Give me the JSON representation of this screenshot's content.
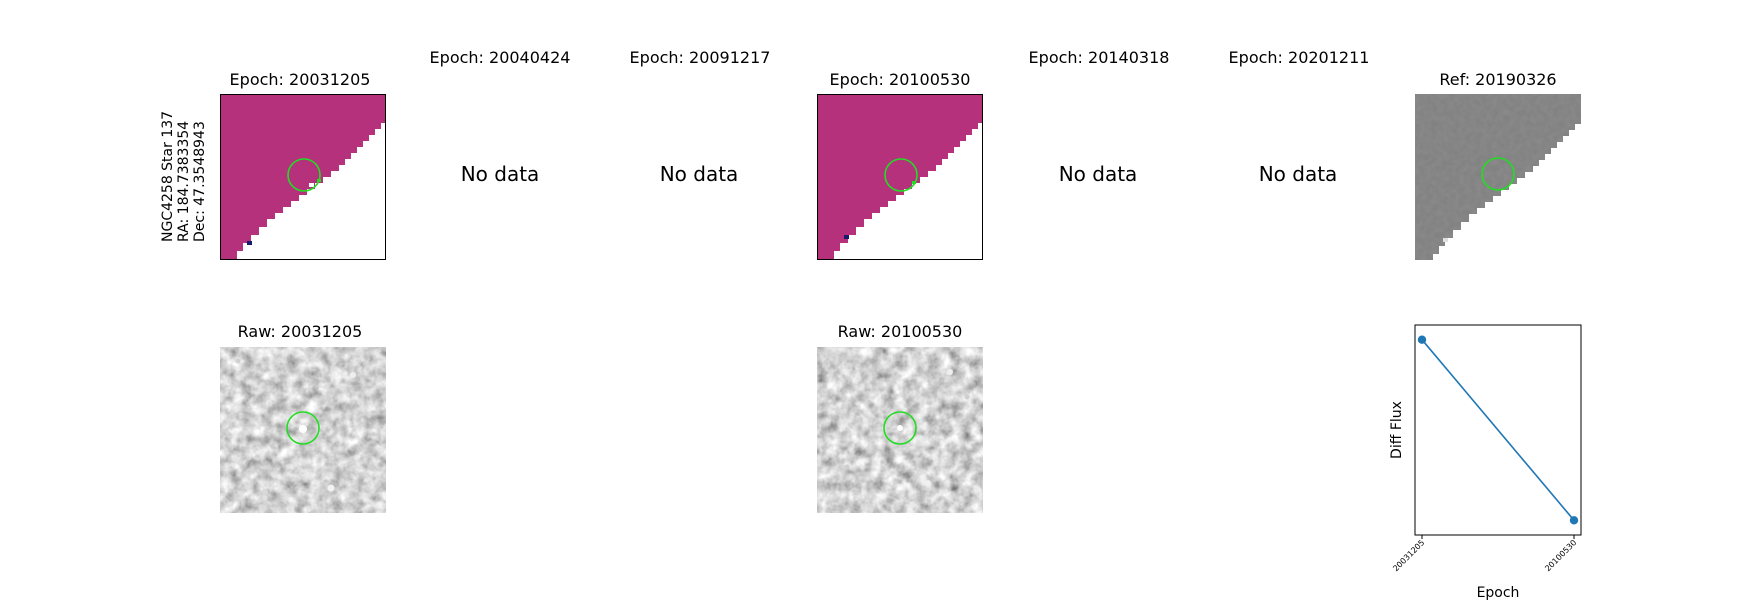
{
  "target": {
    "name": "NGC4258 Star 137",
    "ra_label": "RA: 184.7383354",
    "dec_label": "Dec: 47.3548943"
  },
  "epoch_panels": [
    {
      "title": "Epoch: 20031205",
      "has_data": true
    },
    {
      "title": "Epoch: 20040424",
      "has_data": false
    },
    {
      "title": "Epoch: 20091217",
      "has_data": false
    },
    {
      "title": "Epoch: 20100530",
      "has_data": true
    },
    {
      "title": "Epoch: 20140318",
      "has_data": false
    },
    {
      "title": "Epoch: 20201211",
      "has_data": false
    }
  ],
  "no_data_label": "No data",
  "reference_panel": {
    "title": "Ref: 20190326"
  },
  "raw_panels": [
    {
      "title": "Raw: 20031205"
    },
    {
      "title": "Raw: 20100530"
    }
  ],
  "colors": {
    "diff_fill": "#b5317c",
    "aperture": "#22dd22",
    "series": "#1f77b4",
    "reference_gray": "#808080"
  },
  "chart_data": {
    "type": "line",
    "title": "",
    "xlabel": "Epoch",
    "ylabel": "Diff Flux",
    "x": [
      "20031205",
      "20100530"
    ],
    "series": [
      {
        "values": [
          0.93,
          0.07
        ]
      }
    ],
    "ylim": [
      0,
      1
    ],
    "grid": false,
    "y_ticks_shown": false
  }
}
